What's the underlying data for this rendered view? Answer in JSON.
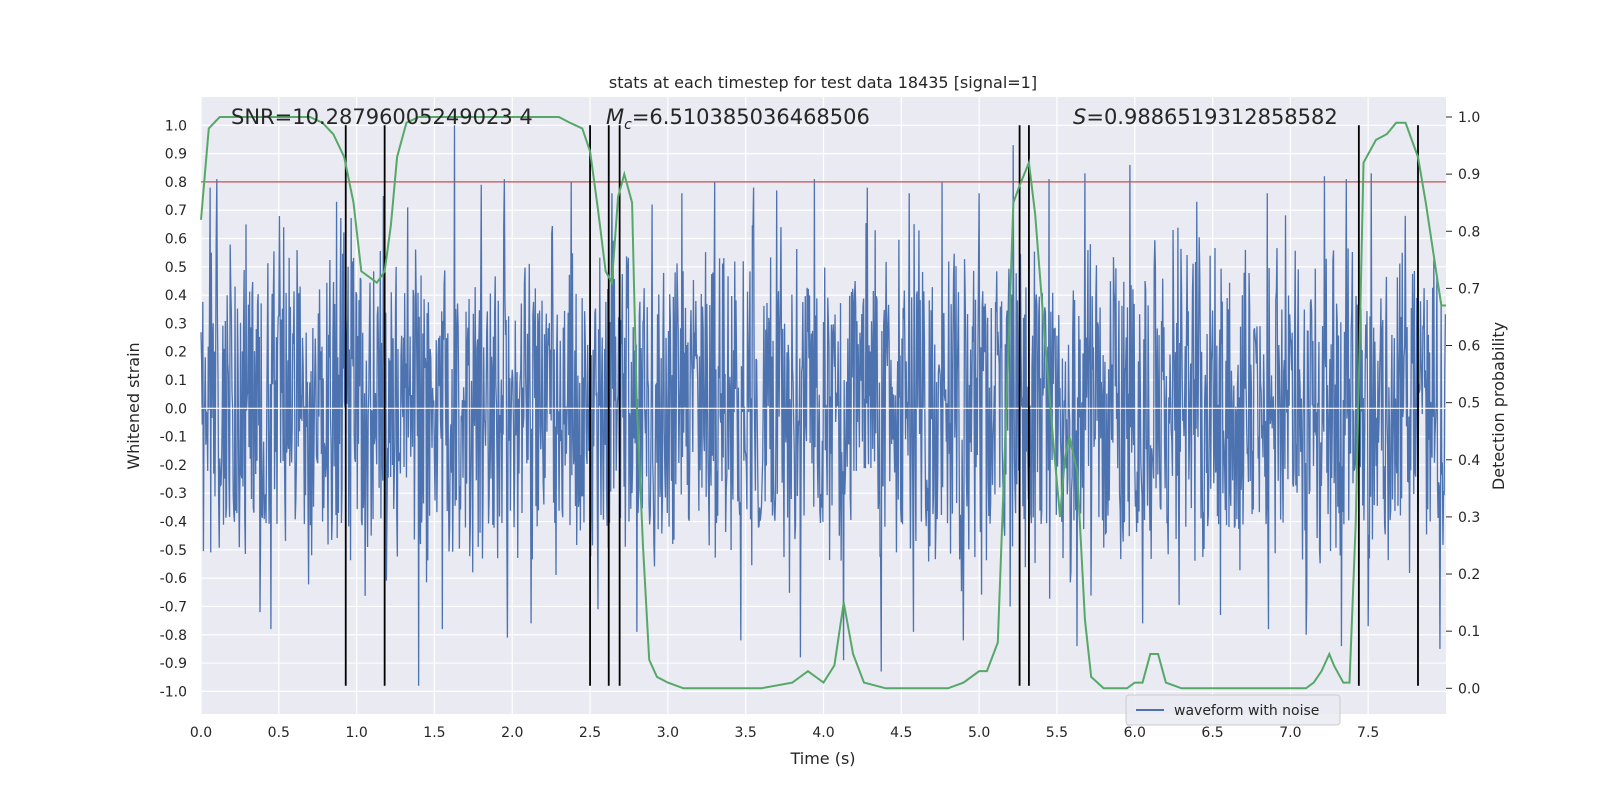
{
  "chart_data": {
    "type": "line",
    "title": "stats at each timestep for test data 18435 [signal=1]",
    "xlabel": "Time (s)",
    "ylabel": "Whitened strain",
    "y2label": "Detection probability",
    "xlim": [
      0.0,
      8.0
    ],
    "ylim": [
      -1.08,
      1.1
    ],
    "y2lim": [
      -0.045,
      1.035
    ],
    "x_ticks": [
      "0.0",
      "0.5",
      "1.0",
      "1.5",
      "2.0",
      "2.5",
      "3.0",
      "3.5",
      "4.0",
      "4.5",
      "5.0",
      "5.5",
      "6.0",
      "6.5",
      "7.0",
      "7.5"
    ],
    "y_ticks": [
      "1.0",
      "0.9",
      "0.8",
      "0.7",
      "0.6",
      "0.5",
      "0.4",
      "0.3",
      "0.2",
      "0.1",
      "0.0",
      "-0.1",
      "-0.2",
      "-0.3",
      "-0.4",
      "-0.5",
      "-0.6",
      "-0.7",
      "-0.8",
      "-0.9",
      "-1.0"
    ],
    "y2_ticks": [
      "1.0",
      "0.9",
      "0.8",
      "0.7",
      "0.6",
      "0.5",
      "0.4",
      "0.3",
      "0.2",
      "0.1",
      "0.0"
    ],
    "annotations": {
      "snr": "SNR=10.28796005249023 4",
      "mc_symbol": "M",
      "mc_subscript": "c",
      "mc_value": "=6.510385036468506",
      "s_symbol": "S",
      "s_value": "=0.9886519312858582"
    },
    "threshold": {
      "y": 0.8,
      "color": "#c44e52"
    },
    "detection_times": [
      0.93,
      1.18,
      2.5,
      2.62,
      2.69,
      5.26,
      5.32,
      7.44,
      7.82
    ],
    "series": [
      {
        "name": "waveform with noise",
        "color": "#4c72b0",
        "axis": "left",
        "sample_rate": 256,
        "band_upper": 0.42,
        "band_lower": -0.4,
        "peaks_pos": [
          [
            0.06,
            0.78
          ],
          [
            0.1,
            0.81
          ],
          [
            0.29,
            0.65
          ],
          [
            0.53,
            0.64
          ],
          [
            0.87,
            0.73
          ],
          [
            1.17,
            0.75
          ],
          [
            1.33,
            0.71
          ],
          [
            1.63,
            1.0
          ],
          [
            1.8,
            0.79
          ],
          [
            1.95,
            0.81
          ],
          [
            2.38,
            0.8
          ],
          [
            2.64,
            0.76
          ],
          [
            2.9,
            0.72
          ],
          [
            3.09,
            0.76
          ],
          [
            3.3,
            0.8
          ],
          [
            3.55,
            0.78
          ],
          [
            3.7,
            0.77
          ],
          [
            3.94,
            0.81
          ],
          [
            4.28,
            0.78
          ],
          [
            4.55,
            0.76
          ],
          [
            4.76,
            0.8
          ],
          [
            5.0,
            0.76
          ],
          [
            5.22,
            0.93
          ],
          [
            5.45,
            0.81
          ],
          [
            5.68,
            0.83
          ],
          [
            5.97,
            0.86
          ],
          [
            6.05,
            0.87
          ],
          [
            6.4,
            0.73
          ],
          [
            6.85,
            0.76
          ],
          [
            7.22,
            0.82
          ],
          [
            7.36,
            0.81
          ],
          [
            7.52,
            0.83
          ],
          [
            7.74,
            0.68
          ]
        ],
        "peaks_neg": [
          [
            0.45,
            -0.78
          ],
          [
            0.38,
            -0.72
          ],
          [
            1.4,
            -0.98
          ],
          [
            1.55,
            -0.78
          ],
          [
            1.97,
            -0.81
          ],
          [
            2.12,
            -0.76
          ],
          [
            2.55,
            -0.71
          ],
          [
            2.8,
            -0.79
          ],
          [
            3.47,
            -0.82
          ],
          [
            3.85,
            -0.88
          ],
          [
            4.13,
            -0.89
          ],
          [
            4.37,
            -0.93
          ],
          [
            4.58,
            -0.79
          ],
          [
            4.9,
            -0.82
          ],
          [
            5.2,
            -0.7
          ],
          [
            5.63,
            -0.84
          ],
          [
            6.05,
            -0.76
          ],
          [
            6.55,
            -0.73
          ],
          [
            6.86,
            -0.78
          ],
          [
            7.1,
            -0.8
          ],
          [
            7.33,
            -0.84
          ],
          [
            7.5,
            -0.77
          ],
          [
            7.96,
            -0.85
          ]
        ]
      },
      {
        "name": "detection probability",
        "color": "#55a868",
        "axis": "right",
        "x": [
          0.0,
          0.05,
          0.12,
          0.2,
          0.3,
          0.4,
          0.5,
          0.6,
          0.7,
          0.78,
          0.85,
          0.92,
          0.98,
          1.03,
          1.08,
          1.13,
          1.18,
          1.22,
          1.26,
          1.32,
          1.4,
          1.5,
          1.6,
          1.7,
          1.8,
          2.0,
          2.2,
          2.3,
          2.37,
          2.45,
          2.5,
          2.55,
          2.6,
          2.64,
          2.68,
          2.72,
          2.77,
          2.8,
          2.84,
          2.88,
          2.93,
          3.0,
          3.1,
          3.2,
          3.4,
          3.6,
          3.8,
          3.85,
          3.9,
          3.95,
          4.0,
          4.07,
          4.13,
          4.19,
          4.26,
          4.4,
          4.6,
          4.8,
          4.9,
          5.0,
          5.05,
          5.12,
          5.17,
          5.22,
          5.26,
          5.32,
          5.36,
          5.42,
          5.48,
          5.52,
          5.55,
          5.58,
          5.63,
          5.68,
          5.72,
          5.8,
          5.95,
          6.0,
          6.05,
          6.1,
          6.15,
          6.2,
          6.3,
          6.5,
          7.0,
          7.1,
          7.15,
          7.2,
          7.25,
          7.28,
          7.34,
          7.38,
          7.42,
          7.47,
          7.55,
          7.62,
          7.68,
          7.74,
          7.78,
          7.82,
          7.87,
          7.92,
          7.97,
          8.0
        ],
        "values": [
          0.82,
          0.98,
          1.0,
          1.0,
          1.0,
          1.0,
          1.0,
          1.0,
          1.0,
          0.99,
          0.97,
          0.93,
          0.85,
          0.73,
          0.72,
          0.71,
          0.73,
          0.81,
          0.93,
          0.99,
          1.0,
          1.0,
          1.0,
          1.0,
          1.0,
          1.0,
          1.0,
          1.0,
          0.99,
          0.98,
          0.94,
          0.84,
          0.73,
          0.71,
          0.86,
          0.9,
          0.85,
          0.5,
          0.25,
          0.05,
          0.02,
          0.01,
          0.0,
          0.0,
          0.0,
          0.0,
          0.01,
          0.02,
          0.03,
          0.02,
          0.01,
          0.04,
          0.15,
          0.06,
          0.01,
          0.0,
          0.0,
          0.0,
          0.01,
          0.03,
          0.03,
          0.08,
          0.45,
          0.85,
          0.88,
          0.92,
          0.83,
          0.62,
          0.42,
          0.3,
          0.4,
          0.44,
          0.38,
          0.12,
          0.02,
          0.0,
          0.0,
          0.01,
          0.01,
          0.06,
          0.06,
          0.01,
          0.0,
          0.0,
          0.0,
          0.0,
          0.01,
          0.03,
          0.06,
          0.04,
          0.01,
          0.01,
          0.29,
          0.92,
          0.96,
          0.97,
          0.99,
          0.99,
          0.96,
          0.93,
          0.85,
          0.76,
          0.67,
          0.67
        ]
      }
    ],
    "legend": {
      "label": "waveform with noise",
      "placement": "lower-right"
    },
    "grid": true
  }
}
